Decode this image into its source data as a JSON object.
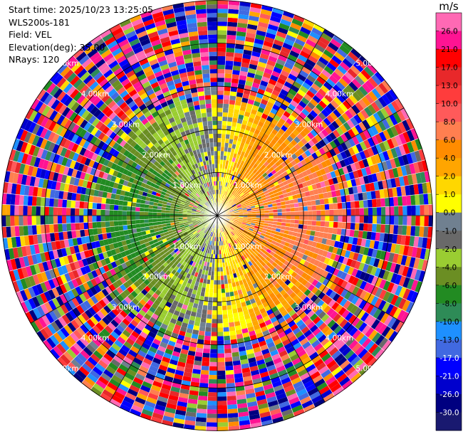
{
  "info": {
    "start_time": "Start time: 2025/10/23 13:25:05",
    "instrument": "WLS200s-181",
    "field": "Field: VEL",
    "elevation": "Elevation(deg): 35.00",
    "nrays": "NRays: 120"
  },
  "chart_data": {
    "type": "heatmap",
    "projection": "polar-ppi",
    "field": "VEL",
    "units": "m/s",
    "n_rays": 120,
    "max_range_km": 5.0,
    "range_ring_labels": [
      "1.00km",
      "2.00km",
      "3.00km",
      "4.00km",
      "5.00km"
    ],
    "range_rings_km": [
      1,
      2,
      3,
      4,
      5
    ],
    "azimuth_lines_deg": [
      0,
      30,
      60,
      90,
      120,
      150
    ],
    "colorbar": {
      "label": "m/s",
      "tick_labels": [
        "26.0",
        "21.0",
        "17.0",
        "13.0",
        "10.0",
        "8.0",
        "6.0",
        "4.0",
        "2.0",
        "1.0",
        "0.0",
        "-1.0",
        "-2.0",
        "-4.0",
        "-6.0",
        "-8.0",
        "-10.0",
        "-13.0",
        "-17.0",
        "-21.0",
        "-26.0",
        "-30.0"
      ],
      "colors": [
        "#ff69b4",
        "#ff1493",
        "#ff0000",
        "#e8282a",
        "#ff3c3c",
        "#ff5a5a",
        "#ff7f50",
        "#ff8c00",
        "#ffa500",
        "#ffd700",
        "#ffff00",
        "#708090",
        "#696969",
        "#9acd32",
        "#6b8e23",
        "#228b22",
        "#2e8b57",
        "#1e90ff",
        "#4169e1",
        "#0000ff",
        "#0000cd",
        "#000080",
        "#191970"
      ],
      "vmin": -30,
      "vmax": 30
    },
    "velocity_pattern": {
      "inner_valid_range_km": 2.8,
      "receding_azimuth_deg": 90,
      "approaching_azimuth_deg": 270,
      "description_levels": "positive (red/orange/yellow) to the east, negative (green/blue) to the west, noisy random beyond ~3 km"
    }
  }
}
